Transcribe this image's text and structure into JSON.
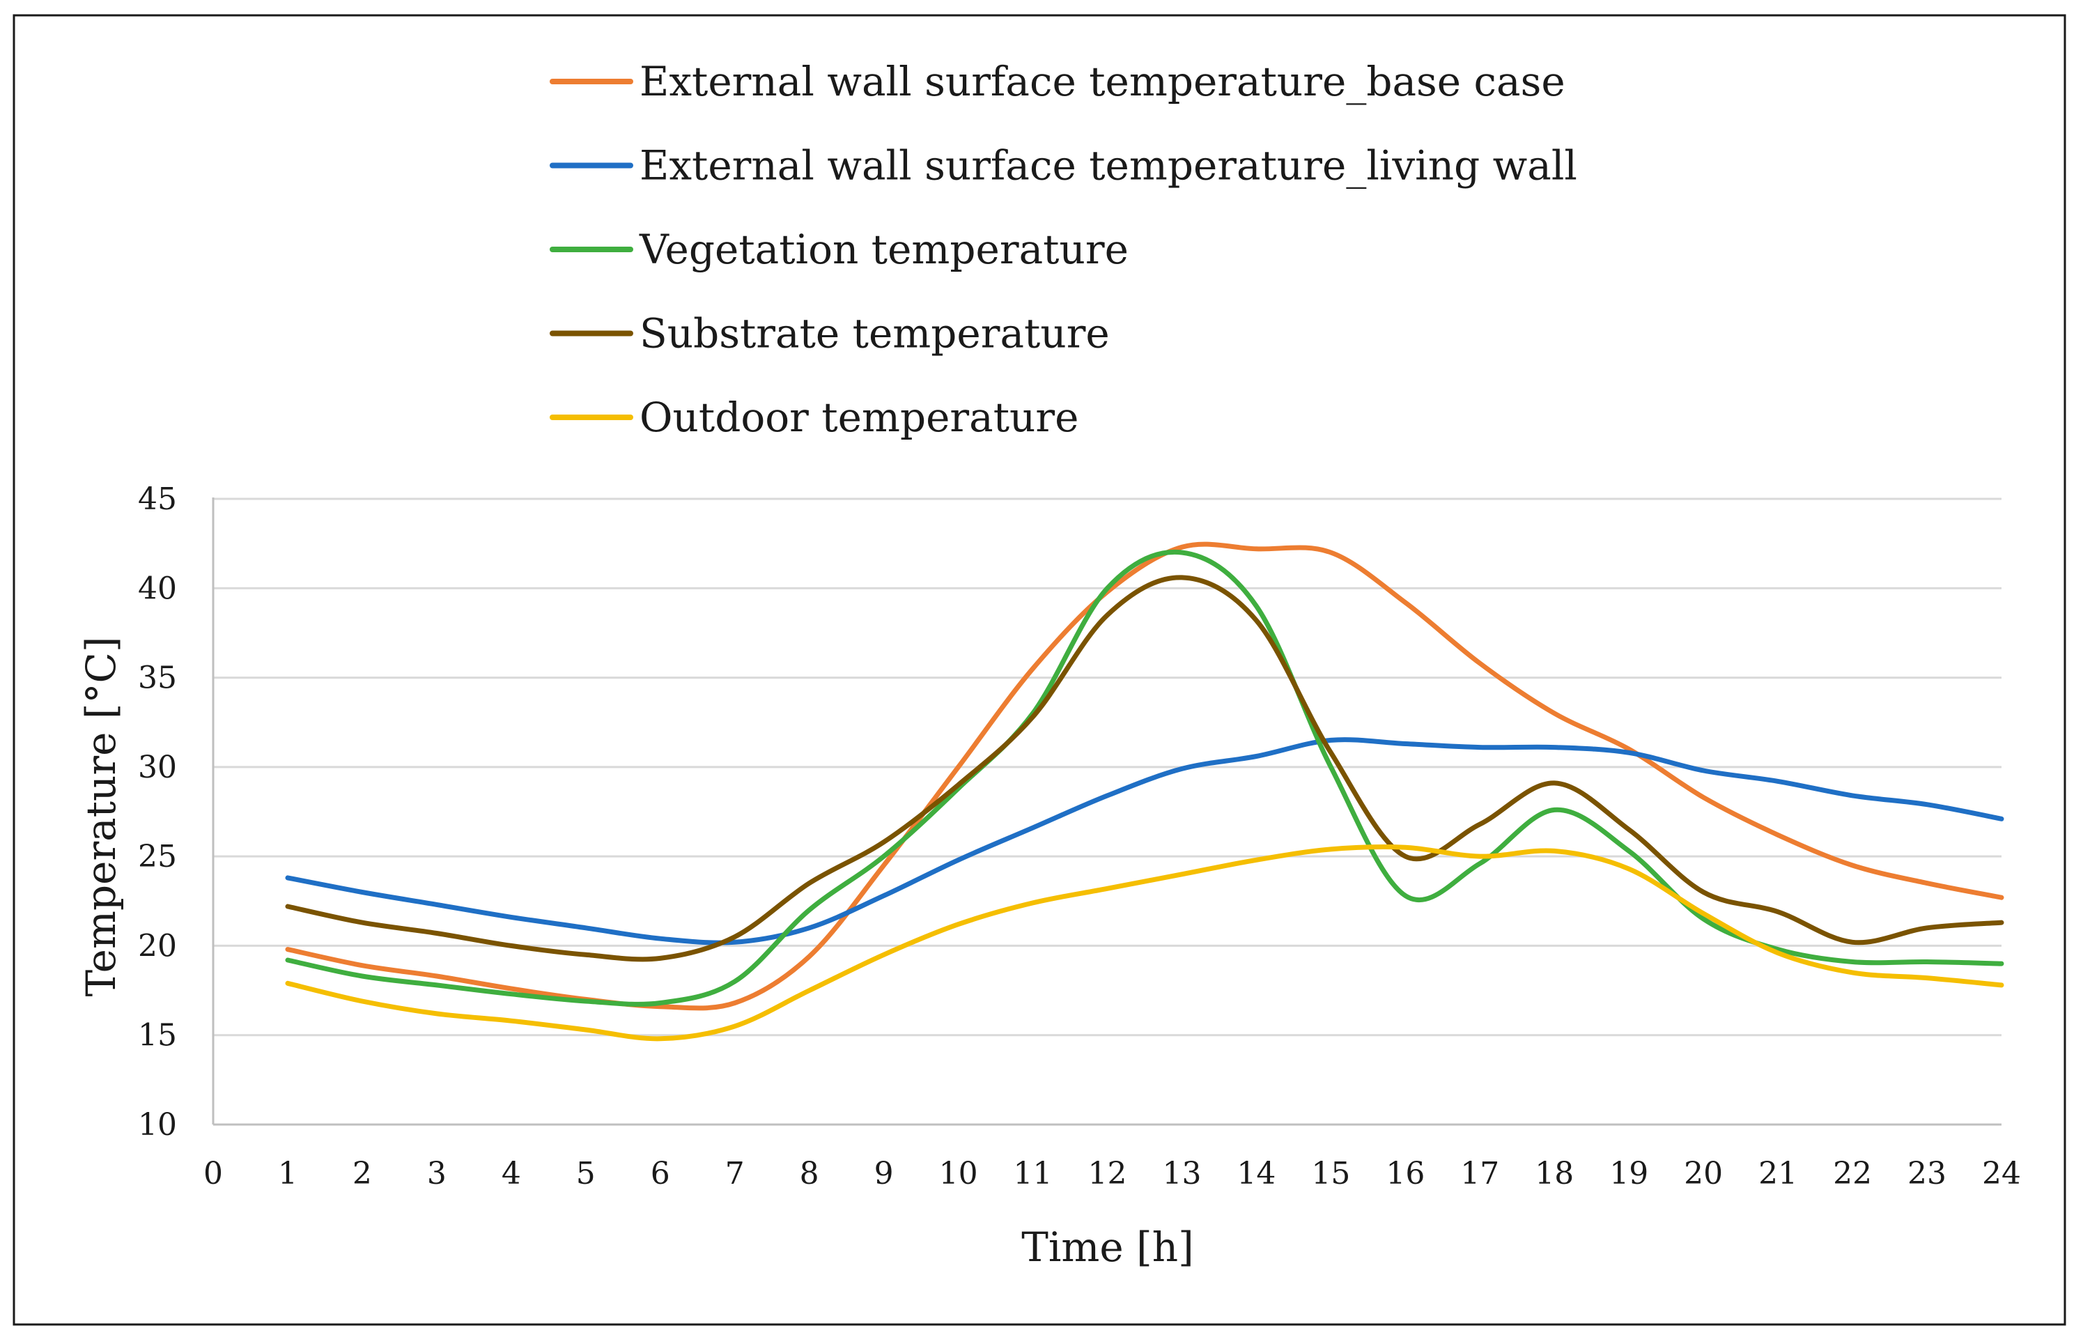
{
  "chart_data": {
    "type": "line",
    "title": "",
    "xlabel": "Time [h]",
    "ylabel": "Temperature  [°C]",
    "xlim": [
      0,
      24
    ],
    "ylim": [
      10,
      45
    ],
    "x_ticks": [
      "0",
      "1",
      "2",
      "3",
      "4",
      "5",
      "6",
      "7",
      "8",
      "9",
      "10",
      "11",
      "12",
      "13",
      "14",
      "15",
      "16",
      "17",
      "18",
      "19",
      "20",
      "21",
      "22",
      "23",
      "24"
    ],
    "y_ticks": [
      "10",
      "15",
      "20",
      "25",
      "30",
      "35",
      "40",
      "45"
    ],
    "grid": "horizontal",
    "legend_position": "top",
    "x": [
      1,
      2,
      3,
      4,
      5,
      6,
      7,
      8,
      9,
      10,
      11,
      12,
      13,
      14,
      15,
      16,
      17,
      18,
      19,
      20,
      21,
      22,
      23,
      24
    ],
    "series": [
      {
        "name": "External wall surface temperature_base case",
        "color": "#ED7D31",
        "values": [
          19.8,
          18.9,
          18.3,
          17.6,
          17.0,
          16.6,
          16.8,
          19.4,
          24.5,
          30.0,
          35.5,
          39.8,
          42.3,
          42.2,
          42.0,
          39.2,
          35.8,
          33.0,
          31.0,
          28.3,
          26.2,
          24.5,
          23.5,
          22.7
        ]
      },
      {
        "name": "External wall surface temperature_living wall",
        "color": "#1F6FC5",
        "values": [
          23.8,
          23.0,
          22.3,
          21.6,
          21.0,
          20.4,
          20.2,
          21.0,
          22.8,
          24.8,
          26.6,
          28.4,
          29.9,
          30.6,
          31.5,
          31.3,
          31.1,
          31.1,
          30.8,
          29.8,
          29.2,
          28.4,
          27.9,
          27.1
        ]
      },
      {
        "name": "Vegetation temperature",
        "color": "#3FAE3F",
        "values": [
          19.2,
          18.3,
          17.8,
          17.3,
          16.9,
          16.8,
          18.0,
          22.0,
          25.0,
          28.8,
          33.0,
          40.0,
          42.0,
          39.0,
          30.0,
          22.8,
          24.6,
          27.6,
          25.3,
          21.5,
          19.8,
          19.1,
          19.1,
          19.0
        ]
      },
      {
        "name": "Substrate temperature",
        "color": "#7A5300",
        "values": [
          22.2,
          21.3,
          20.7,
          20.0,
          19.5,
          19.3,
          20.5,
          23.5,
          25.8,
          29.0,
          32.8,
          38.5,
          40.6,
          38.2,
          30.8,
          25.0,
          26.8,
          29.1,
          26.5,
          23.0,
          21.9,
          20.2,
          21.0,
          21.3
        ]
      },
      {
        "name": "Outdoor temperature",
        "color": "#F5BE00",
        "values": [
          17.9,
          16.9,
          16.2,
          15.8,
          15.3,
          14.8,
          15.5,
          17.5,
          19.5,
          21.2,
          22.4,
          23.2,
          24.0,
          24.8,
          25.4,
          25.5,
          25.0,
          25.3,
          24.3,
          21.8,
          19.6,
          18.5,
          18.2,
          17.8
        ]
      }
    ]
  }
}
